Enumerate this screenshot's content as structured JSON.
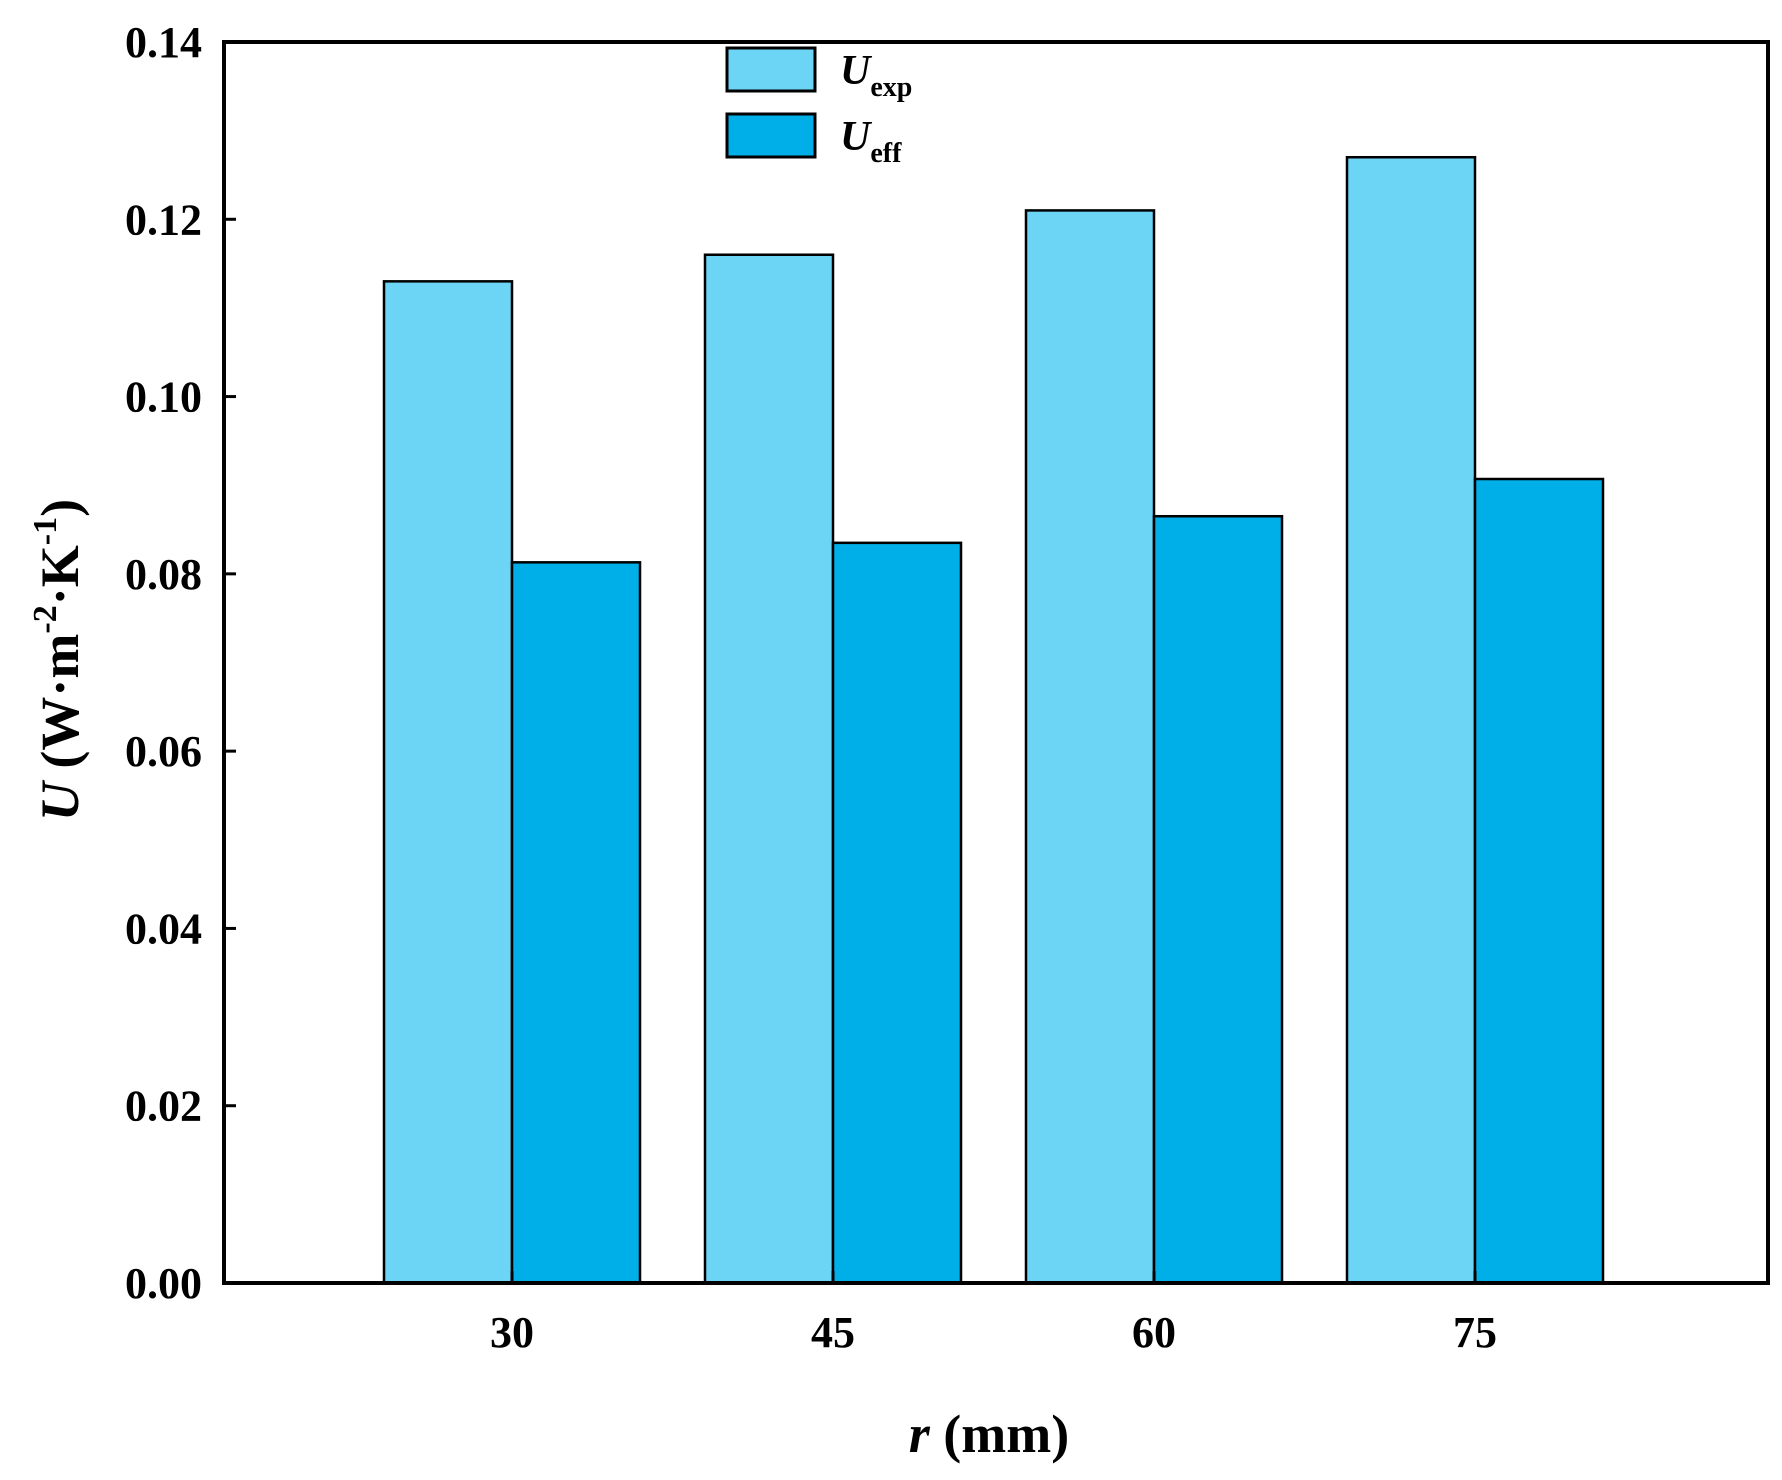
{
  "chart_data": {
    "type": "bar",
    "categories": [
      "30",
      "45",
      "60",
      "75"
    ],
    "series": [
      {
        "name": "U_exp",
        "legend_main": "U",
        "legend_sub": "exp",
        "color": "#6CD4F5",
        "values": [
          0.113,
          0.116,
          0.121,
          0.127
        ]
      },
      {
        "name": "U_eff",
        "legend_main": "U",
        "legend_sub": "eff",
        "color": "#00AEE8",
        "values": [
          0.0813,
          0.0835,
          0.0865,
          0.0907
        ]
      }
    ],
    "ylim": [
      0,
      0.14
    ],
    "yticks": [
      "0.00",
      "0.02",
      "0.04",
      "0.06",
      "0.08",
      "0.10",
      "0.12",
      "0.14"
    ],
    "xlabel": {
      "var": "r",
      "rest": " (mm)"
    },
    "ylabel": {
      "var": "U",
      "open": " (W·m",
      "exp1": "-2",
      "mid": "·K",
      "exp2": "-1",
      "close": ")"
    },
    "legend_position": "top-center",
    "grid": false
  }
}
